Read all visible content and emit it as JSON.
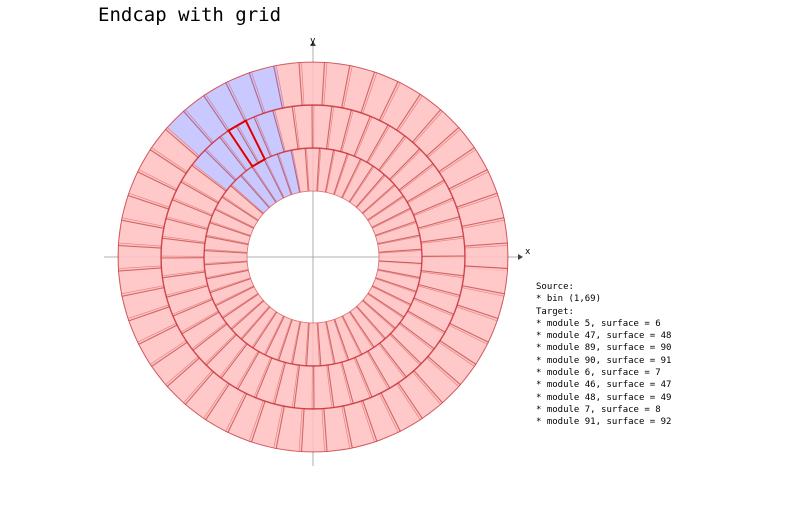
{
  "title": "Endcap with grid",
  "axes": {
    "x_label": "x",
    "y_label": "y"
  },
  "legend": {
    "source_heading": "Source:",
    "source_items": [
      "* bin (1,69)"
    ],
    "target_heading": "Target:",
    "target_items": [
      "* module 5, surface = 6",
      "* module 47, surface = 48",
      "* module 89, surface = 90",
      "* module 90, surface = 91",
      "* module 6, surface = 7",
      "* module 46, surface = 47",
      "* module 48, surface = 49",
      "* module 7, surface = 8",
      "* module 91, surface = 92"
    ]
  },
  "colors": {
    "module_fill": "#ffc0c0",
    "module_edge": "#e06b6b",
    "ring_line": "#c8323c",
    "grid_line": "#b03030",
    "target_fill": "#c0c0ff",
    "source_bin": "#e00000",
    "axis": "#999999"
  }
}
